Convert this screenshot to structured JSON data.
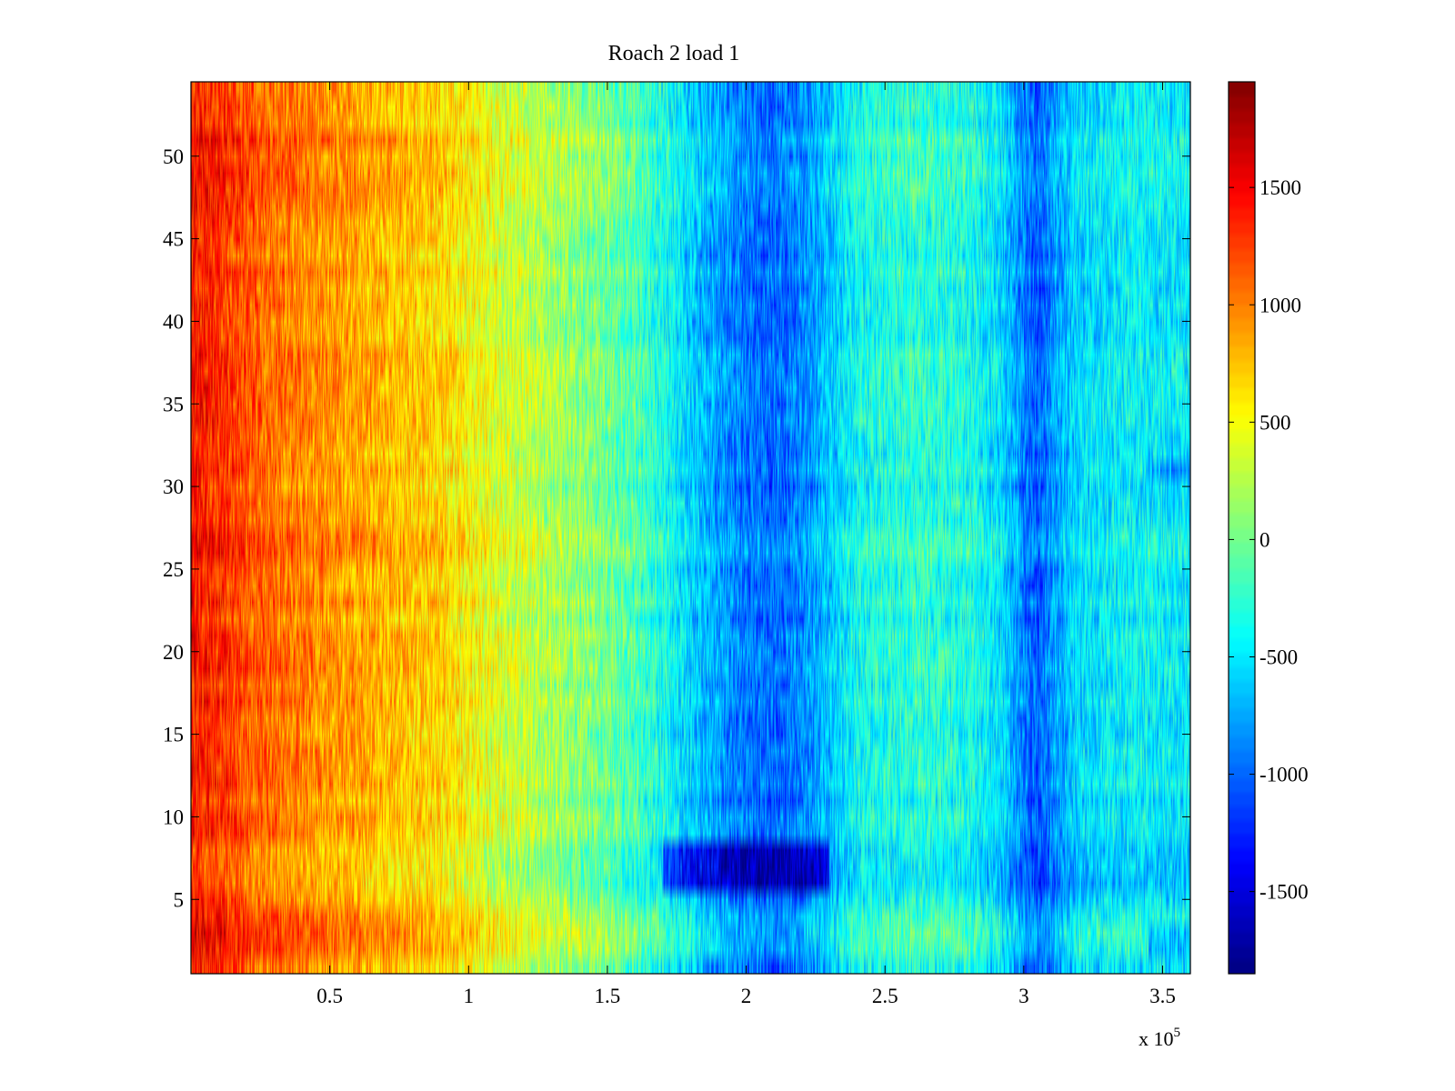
{
  "chart_data": {
    "type": "heatmap",
    "title": "Roach 2 load 1",
    "xlabel": "",
    "ylabel": "",
    "x_multiplier_label": "x 10",
    "x_multiplier_exponent": "5",
    "xlim": [
      0,
      3.6
    ],
    "ylim": [
      0.5,
      54.5
    ],
    "x_ticks": [
      0.5,
      1,
      1.5,
      2,
      2.5,
      3,
      3.5
    ],
    "x_tick_labels": [
      "0.5",
      "1",
      "1.5",
      "2",
      "2.5",
      "3",
      "3.5"
    ],
    "y_ticks": [
      5,
      10,
      15,
      20,
      25,
      30,
      35,
      40,
      45,
      50
    ],
    "y_tick_labels": [
      "5",
      "10",
      "15",
      "20",
      "25",
      "30",
      "35",
      "40",
      "45",
      "50"
    ],
    "rows": 54,
    "colorbar": {
      "colormap": "jet",
      "range": [
        -1850,
        1950
      ],
      "ticks": [
        -1500,
        -1000,
        -500,
        0,
        500,
        1000,
        1500
      ],
      "tick_labels": [
        "-1500",
        "-1000",
        "-500",
        "0",
        "500",
        "1000",
        "1500"
      ]
    },
    "mean_profile": {
      "x": [
        0,
        0.1,
        0.2,
        0.3,
        0.5,
        0.7,
        0.9,
        1.0,
        1.1,
        1.3,
        1.5,
        1.6,
        1.7,
        1.8,
        1.9,
        2.0,
        2.1,
        2.2,
        2.3,
        2.4,
        2.6,
        2.8,
        2.9,
        3.0,
        3.05,
        3.1,
        3.2,
        3.4,
        3.6
      ],
      "value": [
        1400,
        1300,
        1150,
        1050,
        900,
        780,
        650,
        520,
        380,
        180,
        -20,
        -150,
        -350,
        -600,
        -800,
        -950,
        -1000,
        -900,
        -650,
        -400,
        -280,
        -350,
        -500,
        -900,
        -1050,
        -850,
        -550,
        -450,
        -500
      ]
    },
    "row_offsets": [
      {
        "rows": [
          2,
          3,
          4
        ],
        "value": 150
      },
      {
        "rows": [
          6,
          7,
          8
        ],
        "value": -120
      },
      {
        "rows": [
          26,
          27
        ],
        "value": 120
      },
      {
        "rows": [
          48,
          49,
          50,
          51
        ],
        "value": 100
      }
    ],
    "local_patches": [
      {
        "x": [
          1.7,
          2.3
        ],
        "rows": [
          6,
          7,
          8
        ],
        "value": -600
      },
      {
        "x": [
          3.45,
          3.6
        ],
        "rows": [
          2,
          3
        ],
        "value": -400
      },
      {
        "x": [
          3.45,
          3.6
        ],
        "rows": [
          31
        ],
        "value": -400
      }
    ]
  }
}
